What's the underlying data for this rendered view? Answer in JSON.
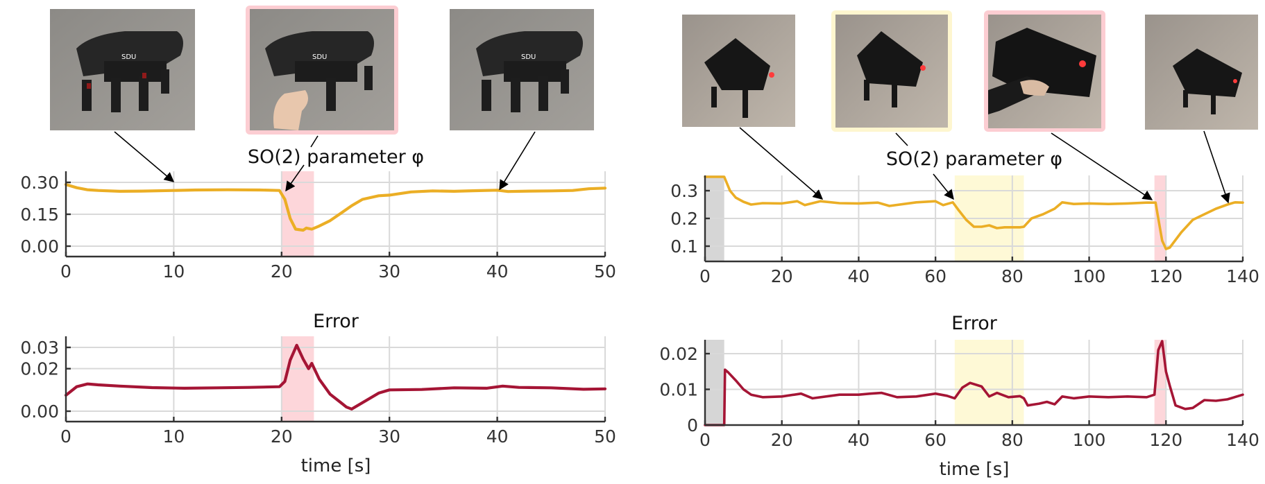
{
  "colors": {
    "phi_line": "#EBAE25",
    "error_line": "#A51535",
    "perturb_highlight": "#FDD6DA",
    "slope_highlight": "#FEF9D6",
    "init_highlight": "#D6D6D6",
    "grid": "#D9D9D9",
    "axis": "#333333",
    "pink_frame": "#FCCDD2",
    "yellow_frame": "#FEF6CF"
  },
  "left_panel": {
    "photos": [
      {
        "id": "L1",
        "frame": "none",
        "description": "hexapod robot standing on concrete floor"
      },
      {
        "id": "L2",
        "frame": "pink",
        "description": "hand pushing hexapod robot leg"
      },
      {
        "id": "L3",
        "frame": "none",
        "description": "hexapod robot standing on concrete floor"
      }
    ]
  },
  "right_panel": {
    "photos": [
      {
        "id": "R1",
        "frame": "none",
        "description": "hexapod robot walking on tiled floor"
      },
      {
        "id": "R2",
        "frame": "yellow",
        "description": "hexapod robot walking on slope"
      },
      {
        "id": "R3",
        "frame": "pink",
        "description": "hand grabbing hexapod robot"
      },
      {
        "id": "R4",
        "frame": "none",
        "description": "hexapod robot walking away"
      }
    ]
  },
  "chart_data": [
    {
      "id": "left_phi",
      "type": "line",
      "title": "SO(2) parameter φ",
      "xlabel": "",
      "ylabel": "",
      "xlim": [
        0,
        50
      ],
      "ylim": [
        -0.03,
        0.33
      ],
      "xticks": [
        0,
        10,
        20,
        30,
        40,
        50
      ],
      "xtick_labels": [
        "0",
        "10",
        "20",
        "30",
        "40",
        "50"
      ],
      "yticks": [
        0.0,
        0.15,
        0.3
      ],
      "ytick_labels": [
        "0.00",
        "0.15",
        "0.30"
      ],
      "grid": true,
      "highlights": [
        {
          "x0": 20,
          "x1": 23,
          "color": "pink"
        }
      ],
      "series": [
        {
          "name": "phi",
          "x": [
            0,
            1,
            2,
            3,
            5,
            7,
            10,
            12,
            15,
            18,
            19.8,
            20.3,
            20.8,
            21.3,
            22,
            22.3,
            22.8,
            23.5,
            24.5,
            25.5,
            26.5,
            27.5,
            29,
            30,
            32,
            34,
            36,
            38,
            40,
            41,
            43,
            45,
            47,
            48.5,
            50
          ],
          "y": [
            0.29,
            0.275,
            0.265,
            0.262,
            0.258,
            0.259,
            0.262,
            0.264,
            0.265,
            0.264,
            0.262,
            0.22,
            0.13,
            0.08,
            0.075,
            0.085,
            0.08,
            0.095,
            0.12,
            0.155,
            0.19,
            0.22,
            0.237,
            0.24,
            0.255,
            0.26,
            0.258,
            0.261,
            0.263,
            0.257,
            0.259,
            0.26,
            0.262,
            0.27,
            0.273
          ]
        }
      ]
    },
    {
      "id": "left_error",
      "type": "line",
      "title": "Error",
      "xlabel": "time [s]",
      "ylabel": "",
      "xlim": [
        0,
        50
      ],
      "ylim": [
        -0.003,
        0.0335
      ],
      "xticks": [
        0,
        10,
        20,
        30,
        40,
        50
      ],
      "xtick_labels": [
        "0",
        "10",
        "20",
        "30",
        "40",
        "50"
      ],
      "yticks": [
        0.0,
        0.02,
        0.03
      ],
      "ytick_labels": [
        "0.00",
        "0.02",
        "0.03"
      ],
      "grid": true,
      "highlights": [
        {
          "x0": 20,
          "x1": 23,
          "color": "pink"
        }
      ],
      "series": [
        {
          "name": "error",
          "x": [
            0,
            1,
            2,
            3,
            5,
            8,
            11,
            14,
            17,
            19.8,
            20.3,
            20.8,
            21.4,
            22,
            22.5,
            22.8,
            23.5,
            24.5,
            25.5,
            26,
            26.5,
            27.5,
            29,
            30,
            33,
            36,
            39,
            40.5,
            42,
            45,
            48,
            50
          ],
          "y": [
            0.0075,
            0.0115,
            0.0128,
            0.0124,
            0.0118,
            0.0111,
            0.0108,
            0.011,
            0.0112,
            0.0115,
            0.014,
            0.024,
            0.031,
            0.0245,
            0.02,
            0.0225,
            0.015,
            0.008,
            0.004,
            0.002,
            0.001,
            0.004,
            0.0085,
            0.01,
            0.0102,
            0.011,
            0.0108,
            0.0118,
            0.0112,
            0.011,
            0.0103,
            0.0105
          ]
        }
      ]
    },
    {
      "id": "right_phi",
      "type": "line",
      "title": "SO(2) parameter φ",
      "xlabel": "",
      "ylabel": "",
      "xlim": [
        0,
        140
      ],
      "ylim": [
        0.045,
        0.355
      ],
      "xticks": [
        0,
        20,
        40,
        60,
        80,
        100,
        120,
        140
      ],
      "xtick_labels": [
        "0",
        "20",
        "40",
        "60",
        "80",
        "100",
        "120",
        "140"
      ],
      "yticks": [
        0.1,
        0.2,
        0.3
      ],
      "ytick_labels": [
        "0.1",
        "0.2",
        "0.3"
      ],
      "grid": true,
      "highlights": [
        {
          "x0": 0,
          "x1": 5,
          "color": "gray"
        },
        {
          "x0": 65,
          "x1": 83,
          "color": "yellow"
        },
        {
          "x0": 117,
          "x1": 120,
          "color": "pink"
        }
      ],
      "series": [
        {
          "name": "phi",
          "x": [
            0,
            5,
            5.6,
            6.5,
            8,
            10,
            12,
            15,
            20,
            24,
            26,
            30,
            35,
            40,
            45,
            48,
            55,
            60,
            62,
            64.5,
            66,
            68,
            70,
            72,
            74,
            76,
            78,
            80,
            82,
            83,
            85,
            88,
            91,
            93,
            96,
            100,
            105,
            110,
            115,
            117.3,
            118,
            119,
            120,
            121,
            124,
            127,
            130,
            133,
            136,
            138,
            140
          ],
          "y": [
            0.35,
            0.35,
            0.33,
            0.3,
            0.275,
            0.26,
            0.25,
            0.255,
            0.254,
            0.262,
            0.248,
            0.262,
            0.255,
            0.254,
            0.257,
            0.245,
            0.258,
            0.262,
            0.248,
            0.258,
            0.23,
            0.195,
            0.17,
            0.17,
            0.175,
            0.165,
            0.168,
            0.168,
            0.168,
            0.17,
            0.2,
            0.215,
            0.235,
            0.258,
            0.252,
            0.254,
            0.252,
            0.254,
            0.257,
            0.257,
            0.2,
            0.12,
            0.09,
            0.095,
            0.15,
            0.195,
            0.215,
            0.235,
            0.25,
            0.258,
            0.257
          ]
        }
      ]
    },
    {
      "id": "right_error",
      "type": "line",
      "title": "Error",
      "xlabel": "time [s]",
      "ylabel": "",
      "xlim": [
        0,
        140
      ],
      "ylim": [
        0,
        0.0235
      ],
      "xticks": [
        0,
        20,
        40,
        60,
        80,
        100,
        120,
        140
      ],
      "xtick_labels": [
        "0",
        "20",
        "40",
        "60",
        "80",
        "100",
        "120",
        "140"
      ],
      "yticks": [
        0,
        0.01,
        0.02
      ],
      "ytick_labels": [
        "0",
        "0.01",
        "0.02"
      ],
      "grid": true,
      "highlights": [
        {
          "x0": 0,
          "x1": 5,
          "color": "gray"
        },
        {
          "x0": 65,
          "x1": 83,
          "color": "yellow"
        },
        {
          "x0": 117,
          "x1": 120,
          "color": "pink"
        }
      ],
      "series": [
        {
          "name": "error",
          "x": [
            0,
            5,
            5.2,
            6,
            8,
            10,
            12,
            15,
            20,
            25,
            28,
            35,
            40,
            43,
            46,
            50,
            55,
            60,
            63,
            65,
            67,
            69,
            72,
            74,
            76,
            79,
            82,
            83,
            84,
            87,
            89,
            91,
            93,
            96,
            100,
            105,
            110,
            115,
            117,
            118,
            119,
            120,
            121,
            122.5,
            125,
            127,
            130,
            133,
            136,
            140
          ],
          "y": [
            0,
            0,
            0.0155,
            0.0148,
            0.0125,
            0.01,
            0.0085,
            0.0078,
            0.008,
            0.0088,
            0.0075,
            0.0085,
            0.0085,
            0.0088,
            0.009,
            0.0078,
            0.008,
            0.0088,
            0.0082,
            0.0075,
            0.0105,
            0.0118,
            0.0108,
            0.008,
            0.009,
            0.0078,
            0.0081,
            0.0075,
            0.0055,
            0.006,
            0.0065,
            0.0058,
            0.008,
            0.0075,
            0.008,
            0.0078,
            0.008,
            0.0078,
            0.0085,
            0.021,
            0.0235,
            0.015,
            0.011,
            0.0055,
            0.0045,
            0.0048,
            0.007,
            0.0068,
            0.0072,
            0.0085
          ]
        }
      ]
    }
  ]
}
